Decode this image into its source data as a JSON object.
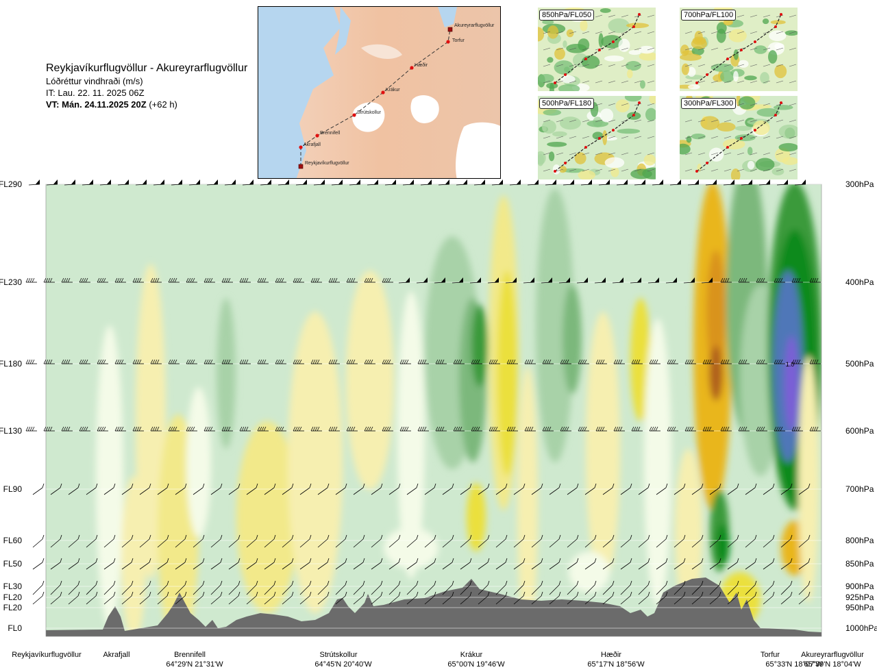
{
  "title": {
    "route": "Reykjavíkurflugvöllur - Akureyrarflugvöllur",
    "product": "Lóðréttur vindhraði (m/s)",
    "init_time": "IT: Lau. 22. 11. 2025 06Z",
    "valid_prefix": "VT: Mán. 24.11.2025 20Z",
    "valid_suffix": "(+62 h)"
  },
  "insets": [
    {
      "label": "850hPa/FL050"
    },
    {
      "label": "700hPa/FL100"
    },
    {
      "label": "500hPa/FL180"
    },
    {
      "label": "300hPa/FL300"
    }
  ],
  "map_labels": [
    "Akureyrarflugvöllur",
    "Torfur",
    "Hæðir",
    "Krákur",
    "Strútskollur",
    "Brennifell",
    "Akrafjall",
    "Reykjavíkurflugvöllur"
  ],
  "chart_data": {
    "type": "heatmap",
    "title": "Lóðréttur vindhraði (m/s)",
    "levels": [
      {
        "fl": "FL290",
        "hpa": "300hPa"
      },
      {
        "fl": "FL230",
        "hpa": "400hPa"
      },
      {
        "fl": "FL180",
        "hpa": "500hPa"
      },
      {
        "fl": "FL130",
        "hpa": "600hPa"
      },
      {
        "fl": "FL90",
        "hpa": "700hPa"
      },
      {
        "fl": "FL60",
        "hpa": "800hPa"
      },
      {
        "fl": "FL50",
        "hpa": "850hPa"
      },
      {
        "fl": "FL30",
        "hpa": "900hPa"
      },
      {
        "fl": "FL20",
        "hpa": "925hPa"
      },
      {
        "fl": "FL20",
        "hpa": "950hPa"
      },
      {
        "fl": "FL0",
        "hpa": "1000hPa"
      }
    ],
    "stations": [
      {
        "name": "Reykjavíkurflugvöllur",
        "coord": ""
      },
      {
        "name": "Akrafjall",
        "coord": ""
      },
      {
        "name": "Brennifell",
        "coord": "64°29'N 21°31'W"
      },
      {
        "name": "Strútskollur",
        "coord": "64°45'N 20°40'W"
      },
      {
        "name": "Krákur",
        "coord": "65°00'N 19°46'W"
      },
      {
        "name": "Hæðir",
        "coord": "65°17'N 18°56'W"
      },
      {
        "name": "Torfur",
        "coord": "65°33'N 18°07'W"
      },
      {
        "name": "Akureyrarflugvöllur",
        "coord": "65°39'N 18°04'W"
      }
    ],
    "annotation": "1.0",
    "colors": {
      "strong_neg": "#7b5fd6",
      "neg_3": "#5077b8",
      "neg_2": "#0c8a1c",
      "neg_1": "#3a9a3a",
      "neg_05": "#7cb87c",
      "neg_02": "#a8d2a8",
      "neg_01": "#cfe9cf",
      "near_zero": "#f4fbe8",
      "pos_01": "#f6efb0",
      "pos_02": "#f2e98a",
      "pos_05": "#ebe03c",
      "pos_1": "#e9b61c",
      "pos_2": "#d9931e",
      "pos_3": "#b0601e",
      "terrain": "#6b6b6b"
    }
  }
}
